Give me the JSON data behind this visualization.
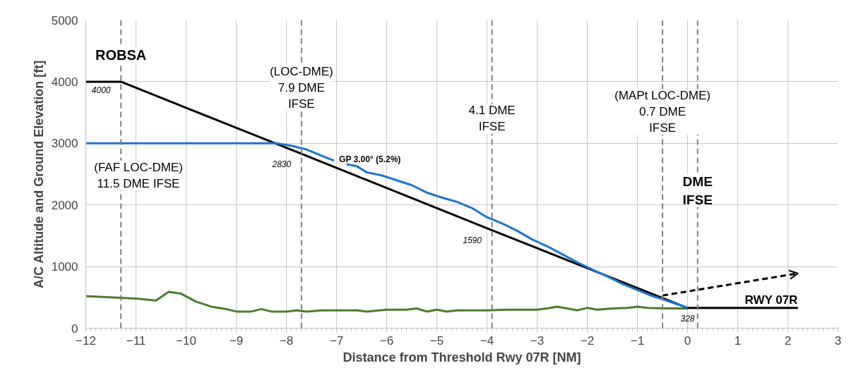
{
  "chart_data": {
    "type": "line",
    "xlabel": "Distance from Threshold Rwy 07R [NM]",
    "ylabel": "A/C Altitude and Ground Elevation [ft]",
    "xlim": [
      -12,
      3
    ],
    "ylim": [
      0,
      5000
    ],
    "xticks": [
      -12,
      -11,
      -10,
      -9,
      -8,
      -7,
      -6,
      -5,
      -4,
      -3,
      -2,
      -1,
      0,
      1,
      2,
      3
    ],
    "yticks": [
      0,
      1000,
      2000,
      3000,
      4000,
      5000
    ],
    "grid": true,
    "series": [
      {
        "color": "#4a7d2a",
        "x": [
          -12,
          -11.5,
          -11,
          -10.6,
          -10.35,
          -10.1,
          -9.8,
          -9.5,
          -9.2,
          -9,
          -8.7,
          -8.5,
          -8.3,
          -8,
          -7.8,
          -7.6,
          -7.3,
          -7,
          -6.6,
          -6.4,
          -6,
          -5.6,
          -5.4,
          -5.2,
          -5,
          -4.8,
          -4.6,
          -4,
          -3.6,
          -3,
          -2.8,
          -2.6,
          -2.4,
          -2.2,
          -2,
          -1.8,
          -1.5,
          -1.2,
          -1,
          -0.8,
          -0.4,
          0
        ],
        "values": [
          520,
          500,
          480,
          450,
          590,
          560,
          430,
          350,
          310,
          270,
          270,
          310,
          270,
          270,
          290,
          270,
          290,
          290,
          290,
          270,
          300,
          300,
          320,
          270,
          300,
          270,
          290,
          290,
          300,
          300,
          320,
          350,
          320,
          290,
          330,
          300,
          320,
          330,
          350,
          330,
          320,
          320
        ]
      },
      {
        "color": "#000000",
        "x": [
          -12,
          -11.3,
          -7.7,
          -3.9,
          0,
          2.2
        ],
        "values": [
          4000,
          4000,
          2830,
          1590,
          328,
          328
        ]
      },
      {
        "color": "#1b75d0",
        "x": [
          -12,
          -8.4,
          -8.2,
          -7.9,
          -7.6,
          -7.3,
          -7.05,
          -6.95,
          -6.8,
          -6.6,
          -6.4,
          -6.1,
          -5.8,
          -5.5,
          -5.2,
          -4.9,
          -4.6,
          -4.3,
          -4.0,
          -3.7,
          -3.4,
          -3.1,
          -2.8,
          -2.5,
          -2.2,
          -1.9,
          -1.6,
          -1.3,
          -1.0,
          -0.7,
          -0.5,
          -0.25,
          0
        ],
        "values": [
          3000,
          3000,
          3000,
          2960,
          2900,
          2800,
          2720,
          null,
          2660,
          2630,
          2530,
          2480,
          2400,
          2320,
          2200,
          2120,
          2050,
          1950,
          1800,
          1700,
          1580,
          1440,
          1330,
          1200,
          1070,
          950,
          840,
          720,
          620,
          520,
          470,
          400,
          330
        ]
      },
      {
        "color": "#000000",
        "line_style": "dashed",
        "x": [
          -0.5,
          2.2
        ],
        "values": [
          530,
          890
        ]
      }
    ],
    "ref_lines": [
      {
        "axis": "x",
        "value": -11.3,
        "color": "#808080",
        "line_style": "dashed",
        "label": "ROBSA"
      },
      {
        "axis": "x",
        "value": -7.7,
        "color": "#808080",
        "line_style": "dashed",
        "label": "(LOC-DME)\n7.9 DME\nIFSE"
      },
      {
        "axis": "x",
        "value": -3.9,
        "color": "#808080",
        "line_style": "dashed",
        "label": "4.1 DME\nIFSE"
      },
      {
        "axis": "x",
        "value": -0.5,
        "color": "#808080",
        "line_style": "dashed",
        "label": "(MAPt LOC-DME)\n0.7 DME\nIFSE"
      },
      {
        "axis": "x",
        "value": 0.2,
        "color": "#808080",
        "line_style": "dashed",
        "label": "DME\nIFSE"
      }
    ],
    "annotations": [
      {
        "text": "4000",
        "x": -11.3,
        "y": 4000
      },
      "(FAF LOC-DME)\n11.5 DME IFSE",
      {
        "text": "2830",
        "x": -7.7,
        "y": 2830
      },
      "GP 3.00° (5.2%)",
      {
        "text": "1590",
        "x": -3.9,
        "y": 1590
      },
      {
        "text": "328",
        "x": 0,
        "y": 328
      },
      "RWY 07R"
    ]
  }
}
